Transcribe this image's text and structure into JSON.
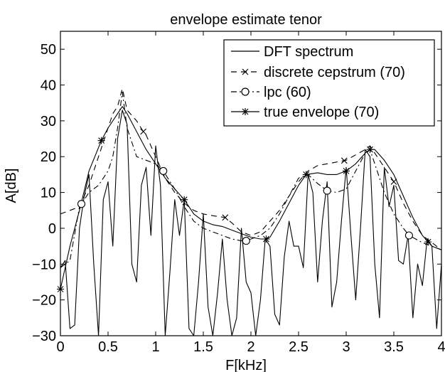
{
  "chart_data": {
    "type": "line",
    "title": "envelope estimate tenor",
    "xlabel": "F[kHz]",
    "ylabel": "A[dB]",
    "xlim": [
      0,
      4
    ],
    "ylim": [
      -30,
      55
    ],
    "xticks": [
      "0",
      "0.5",
      "1",
      "1.5",
      "2",
      "2.5",
      "3",
      "3.5",
      "4"
    ],
    "xtick_values": [
      0,
      0.5,
      1,
      1.5,
      2,
      2.5,
      3,
      3.5,
      4
    ],
    "yticks": [
      "−30",
      "−20",
      "−10",
      "0",
      "10",
      "20",
      "30",
      "40",
      "50"
    ],
    "ytick_values": [
      -30,
      -20,
      -10,
      0,
      10,
      20,
      30,
      40,
      50
    ],
    "grid": false,
    "legend_position": "top-right",
    "series": [
      {
        "name": "DFT spectrum",
        "style": "solid",
        "marker": "none",
        "x": [
          0.0,
          0.05,
          0.1,
          0.15,
          0.2,
          0.25,
          0.3,
          0.35,
          0.4,
          0.45,
          0.5,
          0.55,
          0.6,
          0.65,
          0.7,
          0.75,
          0.8,
          0.85,
          0.9,
          0.95,
          1.0,
          1.05,
          1.1,
          1.15,
          1.2,
          1.25,
          1.3,
          1.35,
          1.4,
          1.45,
          1.5,
          1.55,
          1.6,
          1.65,
          1.7,
          1.75,
          1.8,
          1.85,
          1.9,
          1.95,
          2.0,
          2.05,
          2.1,
          2.15,
          2.2,
          2.25,
          2.3,
          2.35,
          2.4,
          2.45,
          2.5,
          2.55,
          2.6,
          2.65,
          2.7,
          2.75,
          2.8,
          2.85,
          2.9,
          2.95,
          3.0,
          3.05,
          3.1,
          3.15,
          3.2,
          3.25,
          3.3,
          3.35,
          3.4,
          3.45,
          3.5,
          3.55,
          3.6,
          3.65,
          3.7,
          3.75,
          3.8,
          3.85,
          3.9,
          3.95,
          4.0
        ],
        "y": [
          -11,
          -9,
          -28,
          -27,
          0,
          9,
          15,
          -10,
          -30,
          8,
          13,
          -5,
          25,
          33,
          29,
          -10,
          -15,
          12,
          17,
          -2,
          23,
          12,
          -30,
          -12,
          8,
          -2,
          8,
          -28,
          -30,
          -15,
          4,
          -22,
          -30,
          -18,
          -3,
          -20,
          -30,
          -25,
          0,
          -15,
          -18,
          -30,
          -20,
          -3,
          -5,
          -24,
          -27,
          -8,
          2,
          -5,
          -5,
          -11,
          15,
          10,
          -15,
          2,
          13,
          -22,
          -15,
          2,
          17,
          -2,
          -20,
          0,
          22,
          20,
          -10,
          -25,
          17,
          6,
          12,
          -9,
          -10,
          -2,
          -25,
          -10,
          -16,
          -3,
          -5,
          -28,
          -10
        ]
      },
      {
        "name": "discrete cepstrum (70)",
        "style": "dashed",
        "marker": "x",
        "x": [
          0.0,
          0.1,
          0.2,
          0.3,
          0.4,
          0.5,
          0.55,
          0.6,
          0.65,
          0.7,
          0.8,
          0.87,
          0.9,
          1.0,
          1.1,
          1.2,
          1.3,
          1.4,
          1.5,
          1.6,
          1.73,
          1.8,
          1.9,
          2.0,
          2.1,
          2.2,
          2.3,
          2.4,
          2.5,
          2.6,
          2.7,
          2.8,
          2.9,
          3.0,
          3.1,
          3.2,
          3.25,
          3.3,
          3.4,
          3.5,
          3.6,
          3.7,
          3.8,
          3.9,
          4.0
        ],
        "y": [
          4,
          5,
          6,
          12,
          20,
          28,
          32,
          34,
          39,
          33,
          30,
          27,
          26,
          20,
          14,
          10,
          7,
          5,
          4,
          3.5,
          3,
          1.5,
          -1,
          -2,
          -1,
          2,
          5,
          9,
          13,
          16,
          17.5,
          18,
          18.5,
          19,
          20.5,
          22,
          23,
          21,
          17,
          13,
          7,
          2,
          -2,
          -4,
          -6
        ],
        "marker_x": [
          0.87,
          1.73,
          2.98,
          3.5
        ]
      },
      {
        "name": "lpc (60)",
        "style": "dashdot",
        "marker": "o",
        "x": [
          0.0,
          0.1,
          0.2,
          0.3,
          0.4,
          0.5,
          0.55,
          0.6,
          0.65,
          0.7,
          0.8,
          0.9,
          1.0,
          1.08,
          1.2,
          1.3,
          1.4,
          1.5,
          1.6,
          1.7,
          1.8,
          1.9,
          1.95,
          2.0,
          2.1,
          2.2,
          2.3,
          2.4,
          2.5,
          2.6,
          2.7,
          2.8,
          2.9,
          3.0,
          3.1,
          3.2,
          3.25,
          3.3,
          3.4,
          3.5,
          3.6,
          3.66,
          3.8,
          3.9,
          4.0
        ],
        "y": [
          -11,
          -9,
          6,
          10,
          12,
          16,
          20,
          28,
          38,
          28,
          20,
          19,
          18,
          16,
          11,
          6,
          2,
          0,
          -1,
          -2,
          -3,
          -3.5,
          -3.5,
          -3,
          -2,
          0,
          4,
          9,
          14,
          15,
          12.5,
          10.5,
          10,
          11,
          16,
          21,
          22,
          18,
          10,
          4,
          0,
          -2,
          -4,
          -5,
          -6
        ],
        "marker_x": [
          0.22,
          1.08,
          1.95,
          2.8,
          3.66
        ]
      },
      {
        "name": "true envelope (70)",
        "style": "solid",
        "marker": "*",
        "x": [
          0.0,
          0.1,
          0.2,
          0.3,
          0.43,
          0.5,
          0.6,
          0.65,
          0.7,
          0.8,
          0.9,
          1.0,
          1.1,
          1.2,
          1.3,
          1.4,
          1.5,
          1.6,
          1.7,
          1.8,
          1.9,
          2.0,
          2.1,
          2.16,
          2.2,
          2.3,
          2.4,
          2.5,
          2.58,
          2.7,
          2.8,
          2.9,
          3.0,
          3.1,
          3.2,
          3.25,
          3.3,
          3.4,
          3.5,
          3.6,
          3.7,
          3.8,
          3.9,
          4.0
        ],
        "y": [
          -17,
          -5,
          5,
          16,
          24.5,
          28,
          32,
          34,
          32,
          27,
          22,
          18,
          14,
          11,
          8,
          4,
          2,
          1,
          0.5,
          -0.5,
          -1.5,
          -2.5,
          -3,
          -3,
          -2.5,
          2,
          7,
          12,
          15,
          15.5,
          15,
          15,
          16,
          18,
          21,
          22,
          22,
          19,
          15,
          9,
          3,
          -2,
          -5,
          -6
        ],
        "marker_x": [
          0.0,
          0.43,
          1.3,
          2.16,
          2.58,
          3.0,
          3.25,
          3.86
        ]
      }
    ]
  }
}
